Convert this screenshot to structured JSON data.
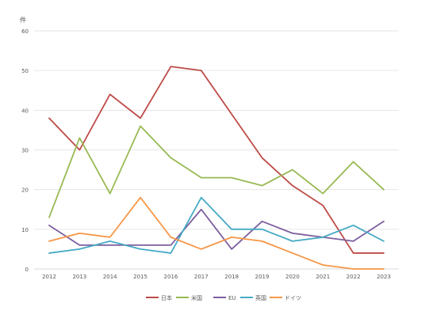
{
  "chart_data": {
    "type": "line",
    "title": "",
    "xlabel": "",
    "ylabel": "件",
    "ylim": [
      0,
      60
    ],
    "yticks": [
      0,
      10,
      20,
      30,
      40,
      50,
      60
    ],
    "grid": "horizontal",
    "legend_position": "bottom",
    "x": [
      "2012",
      "2013",
      "2014",
      "2015",
      "2016",
      "2017",
      "2018",
      "2019",
      "2020",
      "2021",
      "2022",
      "2023"
    ],
    "series": [
      {
        "name": "日本",
        "color": "#be4b48",
        "values": [
          38,
          30,
          44,
          38,
          51,
          50,
          39,
          28,
          21,
          16,
          4,
          4
        ]
      },
      {
        "name": "米国",
        "color": "#98b954",
        "values": [
          13,
          33,
          19,
          36,
          28,
          23,
          23,
          21,
          25,
          19,
          27,
          20
        ]
      },
      {
        "name": "EU",
        "color": "#7d5fa0",
        "values": [
          11,
          6,
          6,
          6,
          6,
          15,
          5,
          12,
          9,
          8,
          7,
          12
        ]
      },
      {
        "name": "英国",
        "color": "#46aac4",
        "values": [
          4,
          5,
          7,
          5,
          4,
          18,
          10,
          10,
          7,
          8,
          11,
          7
        ]
      },
      {
        "name": "ドイツ",
        "color": "#f79646",
        "values": [
          7,
          9,
          8,
          18,
          8,
          5,
          8,
          7,
          4,
          1,
          0,
          0
        ]
      }
    ]
  }
}
